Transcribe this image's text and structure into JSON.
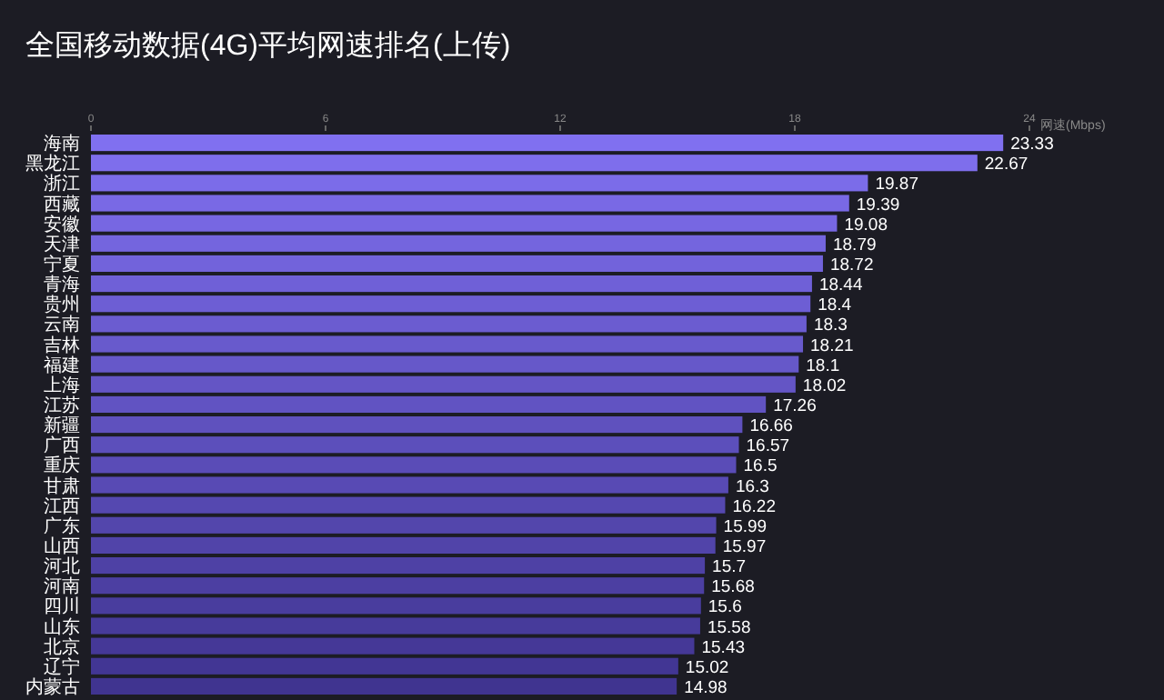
{
  "chart_data": {
    "type": "bar",
    "orientation": "horizontal",
    "title": "全国移动数据(4G)平均网速排名(上传)",
    "xlabel": "网速(Mbps)",
    "categories": [
      "海南",
      "黑龙江",
      "浙江",
      "西藏",
      "安徽",
      "天津",
      "宁夏",
      "青海",
      "贵州",
      "云南",
      "吉林",
      "福建",
      "上海",
      "江苏",
      "新疆",
      "广西",
      "重庆",
      "甘肃",
      "江西",
      "广东",
      "山西",
      "河北",
      "河南",
      "四川",
      "山东",
      "北京",
      "辽宁",
      "内蒙古"
    ],
    "values": [
      23.33,
      22.67,
      19.87,
      19.39,
      19.08,
      18.79,
      18.72,
      18.44,
      18.4,
      18.3,
      18.21,
      18.1,
      18.02,
      17.26,
      16.66,
      16.57,
      16.5,
      16.3,
      16.22,
      15.99,
      15.97,
      15.7,
      15.68,
      15.6,
      15.58,
      15.43,
      15.02,
      14.98
    ],
    "colors": [
      "#8070f0",
      "#7e6eec",
      "#7b6ce9",
      "#7969e5",
      "#7767e2",
      "#7465de",
      "#7263db",
      "#6f60d7",
      "#6d5ed4",
      "#6b5cd0",
      "#685acc",
      "#6658c9",
      "#6455c5",
      "#6153c2",
      "#5f51be",
      "#5c4fbb",
      "#5a4cb7",
      "#584ab4",
      "#5548b0",
      "#5346ac",
      "#5144a9",
      "#4e41a5",
      "#4c3fa2",
      "#493d9e",
      "#473b9b",
      "#453897",
      "#423694",
      "#403490"
    ],
    "xlim": [
      0,
      24
    ],
    "xticks": [
      0,
      6,
      12,
      18,
      24
    ],
    "data_labels": true
  }
}
